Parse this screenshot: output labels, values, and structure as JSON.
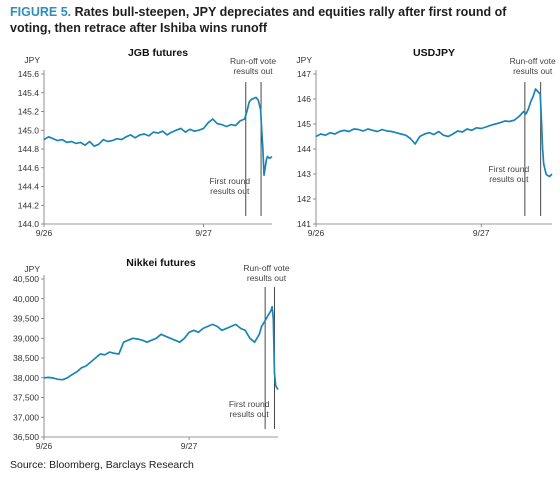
{
  "figure": {
    "label": "FIGURE 5.",
    "title": "Rates bull-steepen, JPY depreciates and equities rally after first round of voting, then retrace after Ishiba wins runoff",
    "source": "Source: Bloomberg, Barclays Research"
  },
  "chart_data": [
    {
      "id": "jgb",
      "type": "line",
      "title": "JGB futures",
      "ylabel": "JPY",
      "ylim": [
        144.0,
        145.6
      ],
      "yticks": [
        "145.6",
        "145.4",
        "145.2",
        "145.0",
        "144.8",
        "144.6",
        "144.4",
        "144.2",
        "144.0"
      ],
      "xticks": [
        "9/26",
        "9/27"
      ],
      "xtick_pos": [
        0,
        0.7
      ],
      "annotations": [
        {
          "lines": [
            "Run-off vote",
            "results out"
          ],
          "x": 0.952
        },
        {
          "lines": [
            "First round",
            "results out"
          ],
          "x": 0.885
        }
      ],
      "series": [
        {
          "color": "#1a85b5",
          "x": [
            0,
            0.02,
            0.04,
            0.06,
            0.08,
            0.1,
            0.12,
            0.14,
            0.16,
            0.18,
            0.2,
            0.22,
            0.24,
            0.26,
            0.28,
            0.3,
            0.32,
            0.34,
            0.36,
            0.38,
            0.4,
            0.42,
            0.44,
            0.46,
            0.48,
            0.5,
            0.52,
            0.54,
            0.56,
            0.58,
            0.6,
            0.62,
            0.64,
            0.66,
            0.68,
            0.7,
            0.72,
            0.74,
            0.76,
            0.78,
            0.8,
            0.82,
            0.84,
            0.86,
            0.88,
            0.89,
            0.9,
            0.91,
            0.92,
            0.93,
            0.94,
            0.95,
            0.955,
            0.96,
            0.965,
            0.97,
            0.975,
            0.98,
            0.99,
            1.0
          ],
          "values": [
            144.9,
            144.93,
            144.91,
            144.89,
            144.9,
            144.87,
            144.88,
            144.86,
            144.87,
            144.84,
            144.88,
            144.83,
            144.85,
            144.9,
            144.88,
            144.89,
            144.91,
            144.9,
            144.93,
            144.95,
            144.92,
            144.95,
            144.96,
            144.94,
            144.98,
            144.97,
            144.99,
            144.95,
            144.98,
            145.0,
            145.02,
            144.98,
            145.01,
            144.99,
            145.0,
            145.02,
            145.08,
            145.12,
            145.07,
            145.06,
            145.04,
            145.06,
            145.05,
            145.1,
            145.12,
            145.2,
            145.3,
            145.33,
            145.34,
            145.35,
            145.32,
            145.22,
            145.0,
            144.8,
            144.52,
            144.6,
            144.68,
            144.72,
            144.7,
            144.72
          ]
        }
      ]
    },
    {
      "id": "usdjpy",
      "type": "line",
      "title": "USDJPY",
      "ylabel": "JPY",
      "ylim": [
        141,
        147
      ],
      "yticks": [
        "147",
        "146",
        "145",
        "144",
        "143",
        "142",
        "141"
      ],
      "xticks": [
        "9/26",
        "9/27"
      ],
      "xtick_pos": [
        0,
        0.7
      ],
      "annotations": [
        {
          "lines": [
            "Run-off vote",
            "results out"
          ],
          "x": 0.952
        },
        {
          "lines": [
            "First round",
            "results out"
          ],
          "x": 0.885
        }
      ],
      "series": [
        {
          "color": "#1a85b5",
          "x": [
            0,
            0.02,
            0.04,
            0.06,
            0.08,
            0.1,
            0.12,
            0.14,
            0.16,
            0.18,
            0.2,
            0.22,
            0.24,
            0.26,
            0.28,
            0.3,
            0.32,
            0.34,
            0.36,
            0.38,
            0.4,
            0.42,
            0.44,
            0.46,
            0.48,
            0.5,
            0.52,
            0.54,
            0.56,
            0.58,
            0.6,
            0.62,
            0.64,
            0.66,
            0.68,
            0.7,
            0.72,
            0.74,
            0.76,
            0.78,
            0.8,
            0.82,
            0.84,
            0.86,
            0.88,
            0.89,
            0.9,
            0.91,
            0.92,
            0.93,
            0.94,
            0.95,
            0.955,
            0.96,
            0.965,
            0.97,
            0.975,
            0.98,
            0.99,
            1.0
          ],
          "values": [
            144.5,
            144.6,
            144.55,
            144.65,
            144.6,
            144.7,
            144.75,
            144.7,
            144.8,
            144.78,
            144.72,
            144.8,
            144.75,
            144.7,
            144.78,
            144.72,
            144.7,
            144.65,
            144.6,
            144.55,
            144.42,
            144.2,
            144.5,
            144.6,
            144.65,
            144.58,
            144.7,
            144.55,
            144.5,
            144.6,
            144.72,
            144.68,
            144.8,
            144.75,
            144.85,
            144.82,
            144.88,
            144.95,
            145.0,
            145.05,
            145.12,
            145.1,
            145.15,
            145.3,
            145.5,
            145.4,
            145.6,
            145.9,
            146.1,
            146.4,
            146.3,
            146.2,
            145.2,
            144.0,
            143.4,
            143.2,
            143.0,
            142.95,
            142.9,
            143.0
          ]
        }
      ]
    },
    {
      "id": "nikkei",
      "type": "line",
      "title": "Nikkei futures",
      "ylabel": "JPY",
      "ylim": [
        36500,
        40500
      ],
      "yticks": [
        "40,500",
        "40,000",
        "39,500",
        "39,000",
        "38,500",
        "38,000",
        "37,500",
        "37,000",
        "36,500"
      ],
      "xticks": [
        "9/26",
        "9/27"
      ],
      "xtick_pos": [
        0,
        0.62
      ],
      "annotations": [
        {
          "lines": [
            "Run-off vote",
            "results out"
          ],
          "x": 0.985
        },
        {
          "lines": [
            "First round",
            "results out"
          ],
          "x": 0.945
        }
      ],
      "series": [
        {
          "color": "#1a85b5",
          "x": [
            0,
            0.02,
            0.04,
            0.06,
            0.08,
            0.1,
            0.12,
            0.14,
            0.16,
            0.18,
            0.2,
            0.22,
            0.24,
            0.26,
            0.28,
            0.3,
            0.32,
            0.34,
            0.36,
            0.38,
            0.4,
            0.42,
            0.44,
            0.46,
            0.48,
            0.5,
            0.52,
            0.54,
            0.56,
            0.58,
            0.6,
            0.62,
            0.64,
            0.66,
            0.68,
            0.7,
            0.72,
            0.74,
            0.76,
            0.78,
            0.8,
            0.82,
            0.84,
            0.86,
            0.88,
            0.9,
            0.92,
            0.93,
            0.94,
            0.95,
            0.96,
            0.97,
            0.975,
            0.98,
            0.985,
            0.99,
            1.0
          ],
          "values": [
            38000,
            38010,
            37990,
            37960,
            37950,
            38000,
            38080,
            38150,
            38250,
            38300,
            38400,
            38500,
            38600,
            38580,
            38650,
            38620,
            38600,
            38900,
            38950,
            39000,
            38980,
            38950,
            38900,
            38950,
            39000,
            39100,
            39050,
            39000,
            38950,
            38900,
            39000,
            39150,
            39200,
            39150,
            39250,
            39300,
            39350,
            39300,
            39200,
            39250,
            39300,
            39350,
            39250,
            39200,
            39000,
            38900,
            39100,
            39300,
            39400,
            39500,
            39600,
            39700,
            39800,
            39500,
            38100,
            37800,
            37700
          ]
        }
      ]
    }
  ]
}
